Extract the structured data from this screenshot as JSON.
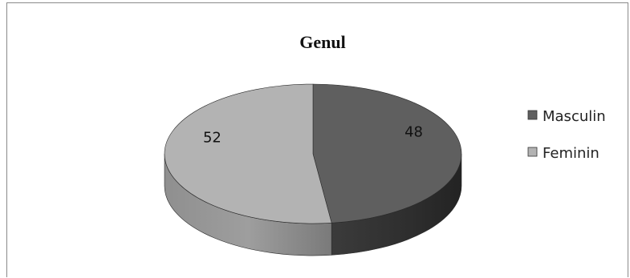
{
  "chart_data": {
    "type": "pie",
    "title": "Genul",
    "style": "3d",
    "legend_position": "right",
    "slices": [
      {
        "label": "Masculin",
        "value": 48,
        "color": "#5f5f5f"
      },
      {
        "label": "Feminin",
        "value": 52,
        "color": "#b3b3b3"
      }
    ]
  }
}
